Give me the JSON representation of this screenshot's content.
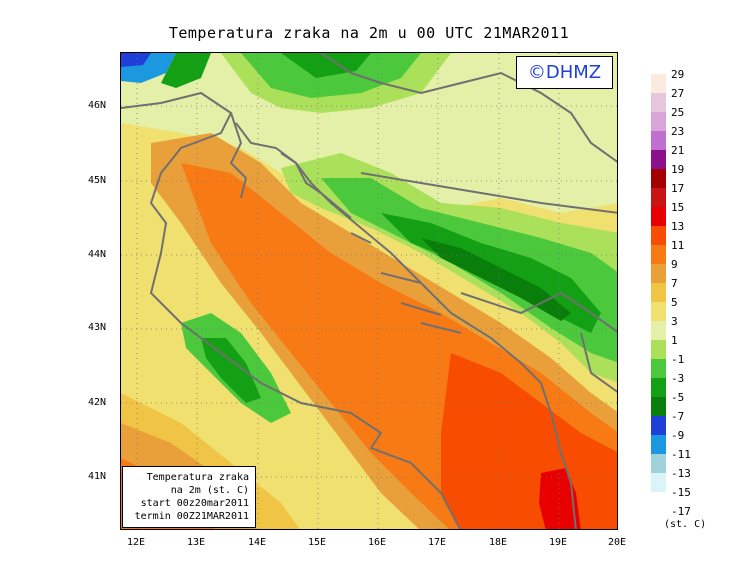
{
  "title": "Temperatura zraka na 2m u 00 UTC 21MAR2011",
  "copyright": "©DHMZ",
  "info_box": {
    "line1": "Temperatura zraka",
    "line2": "na 2m (st. C)",
    "line3": "start 00z20mar2011",
    "line4": "termin 00Z21MAR2011"
  },
  "axes": {
    "lat_ticks": [
      "46N",
      "45N",
      "44N",
      "43N",
      "42N",
      "41N"
    ],
    "lon_ticks": [
      "12E",
      "13E",
      "14E",
      "15E",
      "16E",
      "17E",
      "18E",
      "19E",
      "20E"
    ],
    "lon_range": [
      11.75,
      20.0
    ],
    "lat_range": [
      40.2,
      46.75
    ]
  },
  "legend": {
    "units": "(st. C)",
    "levels": [
      {
        "label": "29",
        "color": "#fbeadf"
      },
      {
        "label": "27",
        "color": "#e6c6dc"
      },
      {
        "label": "25",
        "color": "#d9a4d8"
      },
      {
        "label": "23",
        "color": "#c06fd0"
      },
      {
        "label": "21",
        "color": "#8c0f8c"
      },
      {
        "label": "19",
        "color": "#a50000"
      },
      {
        "label": "17",
        "color": "#c81414"
      },
      {
        "label": "15",
        "color": "#e80000"
      },
      {
        "label": "13",
        "color": "#f84c00"
      },
      {
        "label": "11",
        "color": "#f87a14"
      },
      {
        "label": "9",
        "color": "#e9a03a"
      },
      {
        "label": "7",
        "color": "#f0c445"
      },
      {
        "label": "5",
        "color": "#f0e070"
      },
      {
        "label": "3",
        "color": "#e4f0a8"
      },
      {
        "label": "1",
        "color": "#aae05a"
      },
      {
        "label": "-1",
        "color": "#4cc83c"
      },
      {
        "label": "-3",
        "color": "#14a014"
      },
      {
        "label": "-5",
        "color": "#0a7e0a"
      },
      {
        "label": "-7",
        "color": "#1e3fd8"
      },
      {
        "label": "-9",
        "color": "#1b98e0"
      },
      {
        "label": "-11",
        "color": "#a0d2dc"
      },
      {
        "label": "-13",
        "color": "#daf4f8"
      },
      {
        "label": "-15",
        "color": "#ffffff"
      },
      {
        "label": "-17",
        "color": ""
      }
    ]
  }
}
